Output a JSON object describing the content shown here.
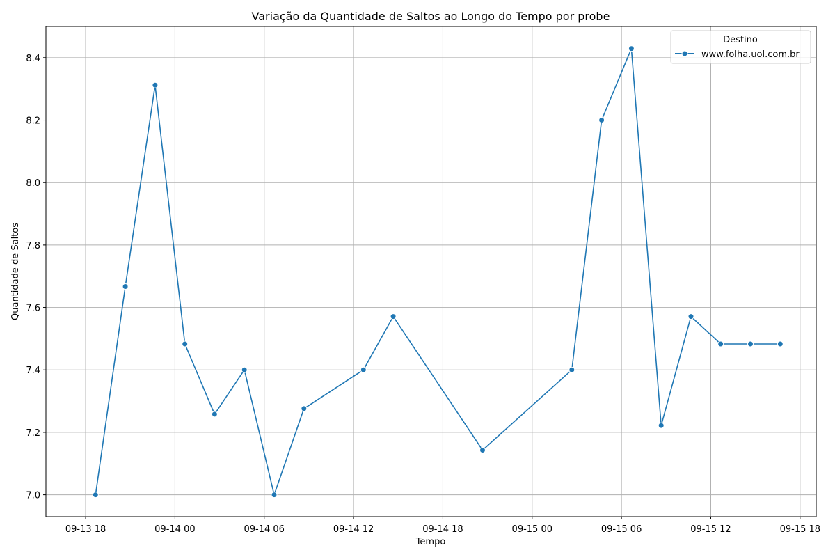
{
  "chart_data": {
    "type": "line",
    "title": "Variação da Quantidade de Saltos ao Longo do Tempo por probe",
    "xlabel": "Tempo",
    "ylabel": "Quantidade de Saltos",
    "x_ticks": [
      "09-13 18",
      "09-14 00",
      "09-14 06",
      "09-14 12",
      "09-14 18",
      "09-15 00",
      "09-15 06",
      "09-15 12",
      "09-15 18"
    ],
    "y_ticks": [
      "7.0",
      "7.2",
      "7.4",
      "7.6",
      "7.8",
      "8.0",
      "8.2",
      "8.4"
    ],
    "xlim": [
      "2024-09-13 15:20",
      "2024-09-15 19:05"
    ],
    "ylim": [
      6.93,
      8.5
    ],
    "grid": true,
    "legend": {
      "title": "Destino",
      "position": "top-right"
    },
    "series": [
      {
        "name": "www.folha.uol.com.br",
        "color": "#1f77b4",
        "marker": "circle",
        "points": [
          {
            "x": "2024-09-13 18:40",
            "y": 7.0
          },
          {
            "x": "2024-09-13 20:40",
            "y": 7.667
          },
          {
            "x": "2024-09-13 22:40",
            "y": 8.312
          },
          {
            "x": "2024-09-14 00:40",
            "y": 7.483
          },
          {
            "x": "2024-09-14 02:40",
            "y": 7.258
          },
          {
            "x": "2024-09-14 04:40",
            "y": 7.4
          },
          {
            "x": "2024-09-14 06:40",
            "y": 7.0
          },
          {
            "x": "2024-09-14 08:40",
            "y": 7.276
          },
          {
            "x": "2024-09-14 12:40",
            "y": 7.4
          },
          {
            "x": "2024-09-14 14:40",
            "y": 7.571
          },
          {
            "x": "2024-09-14 20:40",
            "y": 7.143
          },
          {
            "x": "2024-09-15 02:40",
            "y": 7.4
          },
          {
            "x": "2024-09-15 04:40",
            "y": 8.2
          },
          {
            "x": "2024-09-15 06:40",
            "y": 8.429
          },
          {
            "x": "2024-09-15 08:40",
            "y": 7.222
          },
          {
            "x": "2024-09-15 10:40",
            "y": 7.571
          },
          {
            "x": "2024-09-15 12:40",
            "y": 7.483
          },
          {
            "x": "2024-09-15 14:40",
            "y": 7.483
          },
          {
            "x": "2024-09-15 16:40",
            "y": 7.483
          }
        ]
      }
    ]
  }
}
